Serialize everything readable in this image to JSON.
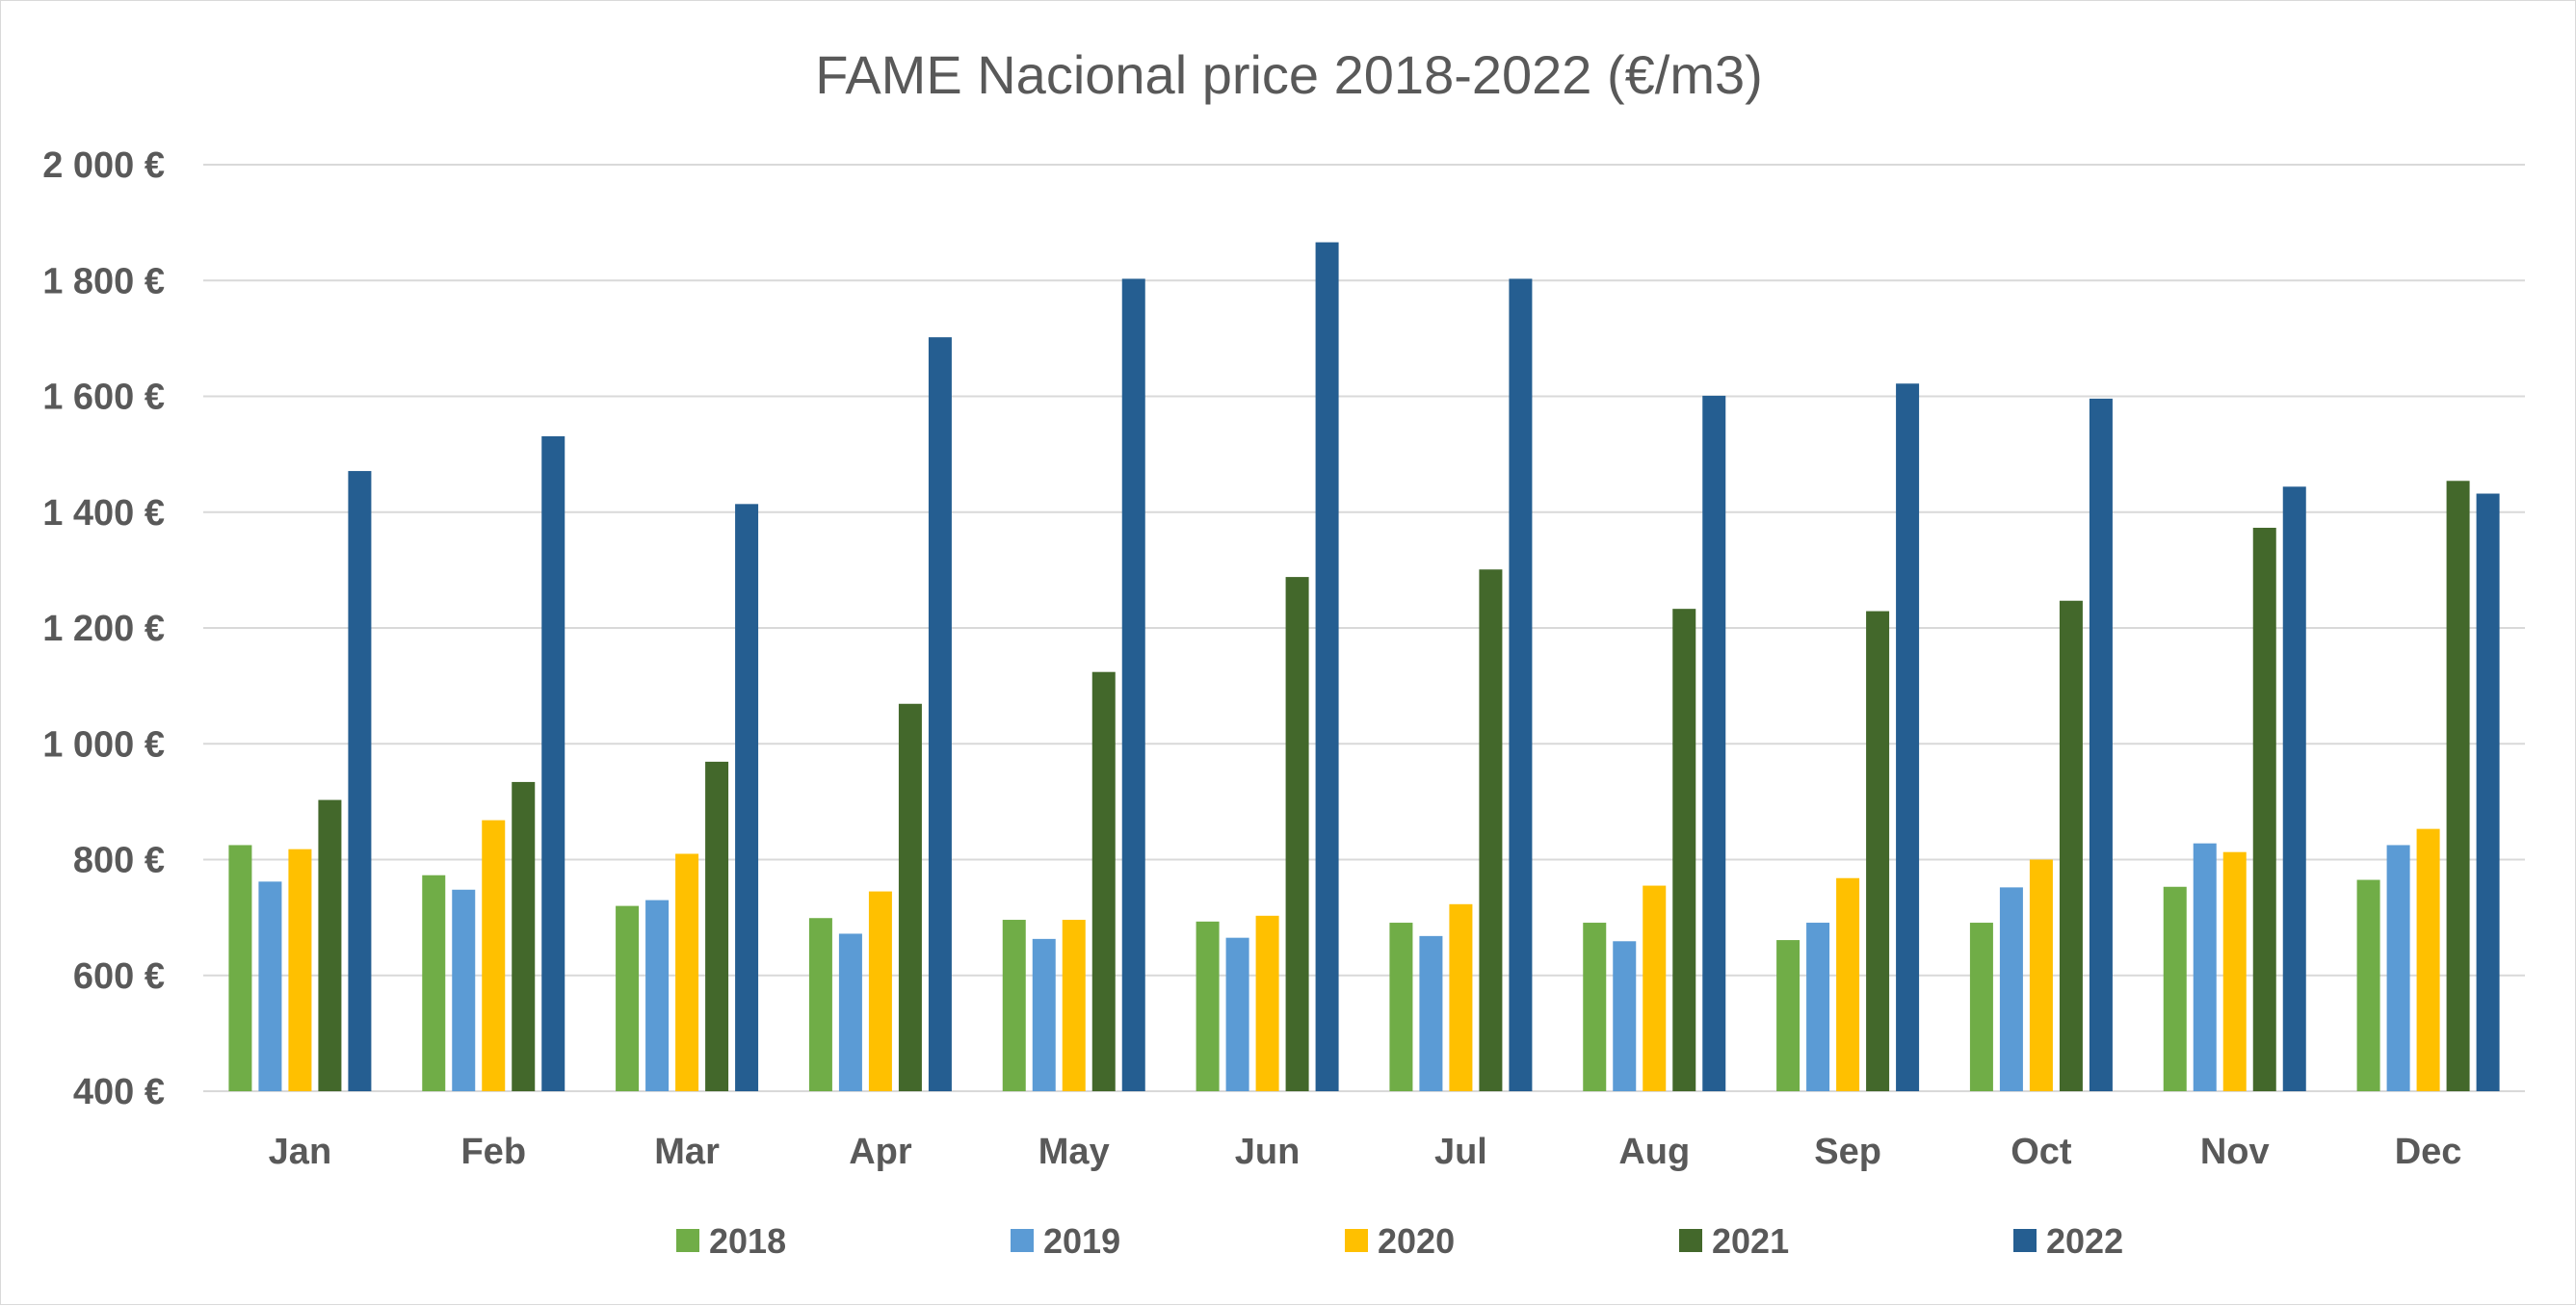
{
  "chart_data": {
    "type": "bar",
    "title": "FAME Nacional price 2018-2022 (€/m3)",
    "xlabel": "",
    "ylabel": "",
    "ylim": [
      400,
      2000
    ],
    "yticks": [
      400,
      600,
      800,
      1000,
      1200,
      1400,
      1600,
      1800,
      2000
    ],
    "ytick_labels": [
      "400 €",
      "600 €",
      "800 €",
      "1 000 €",
      "1 200 €",
      "1 400 €",
      "1 600 €",
      "1 800 €",
      "2 000 €"
    ],
    "grid": true,
    "legend_position": "bottom",
    "categories": [
      "Jan",
      "Feb",
      "Mar",
      "Apr",
      "May",
      "Jun",
      "Jul",
      "Aug",
      "Sep",
      "Oct",
      "Nov",
      "Dec"
    ],
    "series": [
      {
        "name": "2018",
        "color": "#70ad47",
        "values": [
          825,
          773,
          720,
          699,
          696,
          693,
          691,
          691,
          661,
          691,
          753,
          765
        ]
      },
      {
        "name": "2019",
        "color": "#5b9bd5",
        "values": [
          762,
          748,
          730,
          672,
          663,
          665,
          668,
          659,
          691,
          752,
          828,
          825
        ]
      },
      {
        "name": "2020",
        "color": "#ffc000",
        "values": [
          818,
          868,
          810,
          745,
          696,
          703,
          723,
          755,
          768,
          800,
          813,
          853
        ]
      },
      {
        "name": "2021",
        "color": "#43682b",
        "values": [
          903,
          934,
          969,
          1069,
          1124,
          1288,
          1301,
          1233,
          1229,
          1247,
          1373,
          1454
        ]
      },
      {
        "name": "2022",
        "color": "#255e91",
        "values": [
          1471,
          1531,
          1414,
          1702,
          1803,
          1866,
          1803,
          1601,
          1622,
          1596,
          1444,
          1432
        ]
      }
    ]
  }
}
